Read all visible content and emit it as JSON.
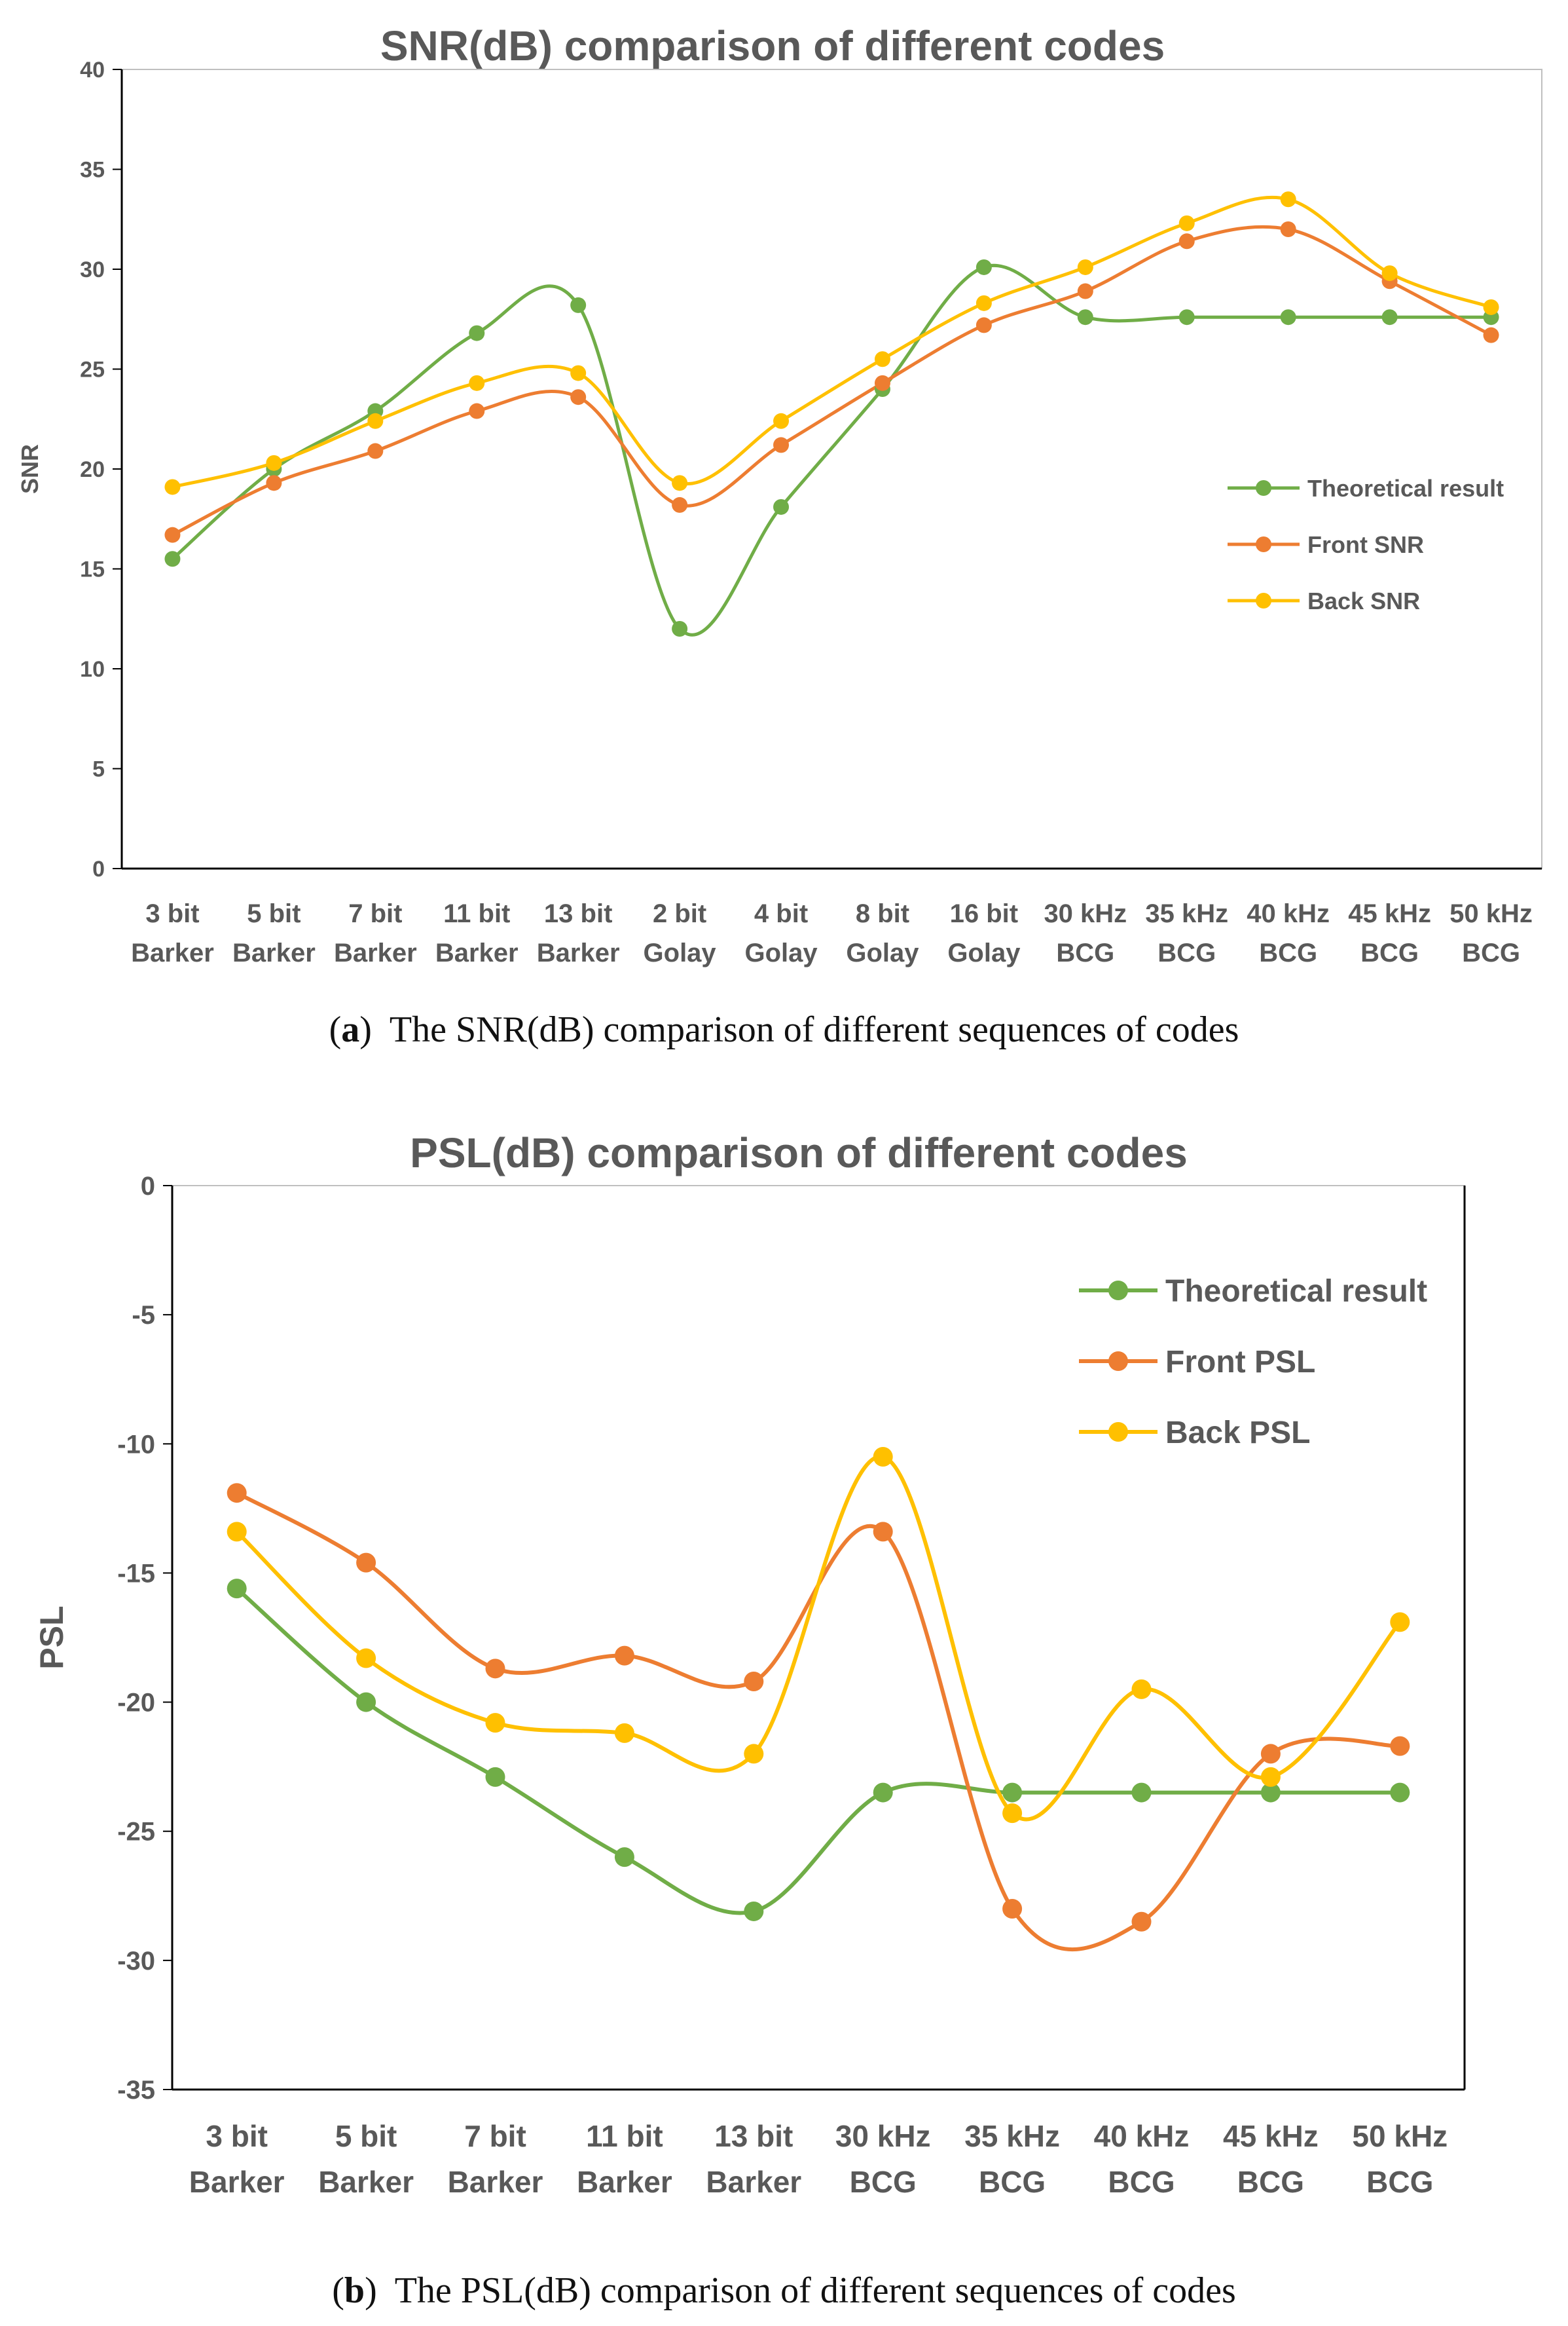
{
  "colors": {
    "theoretical": "#70ad47",
    "front": "#ed7d31",
    "back": "#ffc000",
    "axis": "#000000",
    "text": "#595959"
  },
  "captions": [
    {
      "label": "a",
      "text": "The SNR(dB) comparison of different sequences of codes"
    },
    {
      "label": "b",
      "text": "The PSL(dB) comparison of different sequences of codes"
    }
  ],
  "chart_data": [
    {
      "type": "line",
      "title": "SNR(dB) comparison of different codes",
      "xlabel": "",
      "ylabel": "SNR",
      "ylim": [
        0,
        40
      ],
      "yticks": [
        0,
        5,
        10,
        15,
        20,
        25,
        30,
        35,
        40
      ],
      "grid": false,
      "smooth": true,
      "legend_position": "right-middle",
      "categories": [
        [
          "3 bit",
          "Barker"
        ],
        [
          "5 bit",
          "Barker"
        ],
        [
          "7 bit",
          "Barker"
        ],
        [
          "11 bit",
          "Barker"
        ],
        [
          "13 bit",
          "Barker"
        ],
        [
          "2 bit",
          "Golay"
        ],
        [
          "4 bit",
          "Golay"
        ],
        [
          "8 bit",
          "Golay"
        ],
        [
          "16 bit",
          "Golay"
        ],
        [
          "30 kHz",
          "BCG"
        ],
        [
          "35 kHz",
          "BCG"
        ],
        [
          "40 kHz",
          "BCG"
        ],
        [
          "45 kHz",
          "BCG"
        ],
        [
          "50 kHz",
          "BCG"
        ]
      ],
      "series": [
        {
          "name": "Theoretical result",
          "color": "#70ad47",
          "values": [
            15.5,
            20.0,
            22.9,
            26.8,
            28.2,
            12.0,
            18.1,
            24.0,
            30.1,
            27.6,
            27.6,
            27.6,
            27.6,
            27.6
          ]
        },
        {
          "name": "Front SNR",
          "color": "#ed7d31",
          "values": [
            16.7,
            19.3,
            20.9,
            22.9,
            23.6,
            18.2,
            21.2,
            24.3,
            27.2,
            28.9,
            31.4,
            32.0,
            29.4,
            26.7
          ]
        },
        {
          "name": "Back SNR",
          "color": "#ffc000",
          "values": [
            19.1,
            20.3,
            22.4,
            24.3,
            24.8,
            19.3,
            22.4,
            25.5,
            28.3,
            30.1,
            32.3,
            33.5,
            29.8,
            28.1
          ]
        }
      ]
    },
    {
      "type": "line",
      "title": "PSL(dB) comparison of different codes",
      "xlabel": "",
      "ylabel": "PSL",
      "ylim": [
        -35,
        0
      ],
      "yticks": [
        0,
        -5,
        -10,
        -15,
        -20,
        -25,
        -30,
        -35
      ],
      "grid": false,
      "smooth": true,
      "legend_position": "top-right",
      "categories": [
        [
          "3 bit",
          "Barker"
        ],
        [
          "5 bit",
          "Barker"
        ],
        [
          "7 bit",
          "Barker"
        ],
        [
          "11 bit",
          "Barker"
        ],
        [
          "13 bit",
          "Barker"
        ],
        [
          "30 kHz",
          "BCG"
        ],
        [
          "35 kHz",
          "BCG"
        ],
        [
          "40 kHz",
          "BCG"
        ],
        [
          "45 kHz",
          "BCG"
        ],
        [
          "50 kHz",
          "BCG"
        ]
      ],
      "series": [
        {
          "name": "Theoretical result",
          "color": "#70ad47",
          "values": [
            -15.6,
            -20.0,
            -22.9,
            -26.0,
            -28.1,
            -23.5,
            -23.5,
            -23.5,
            -23.5,
            -23.5
          ]
        },
        {
          "name": "Front PSL",
          "color": "#ed7d31",
          "values": [
            -11.9,
            -14.6,
            -18.7,
            -18.2,
            -19.2,
            -13.4,
            -28.0,
            -28.5,
            -22.0,
            -21.7
          ]
        },
        {
          "name": "Back PSL",
          "color": "#ffc000",
          "values": [
            -13.4,
            -18.3,
            -20.8,
            -21.2,
            -22.0,
            -10.5,
            -24.3,
            -19.5,
            -22.9,
            -16.9
          ]
        }
      ]
    }
  ]
}
